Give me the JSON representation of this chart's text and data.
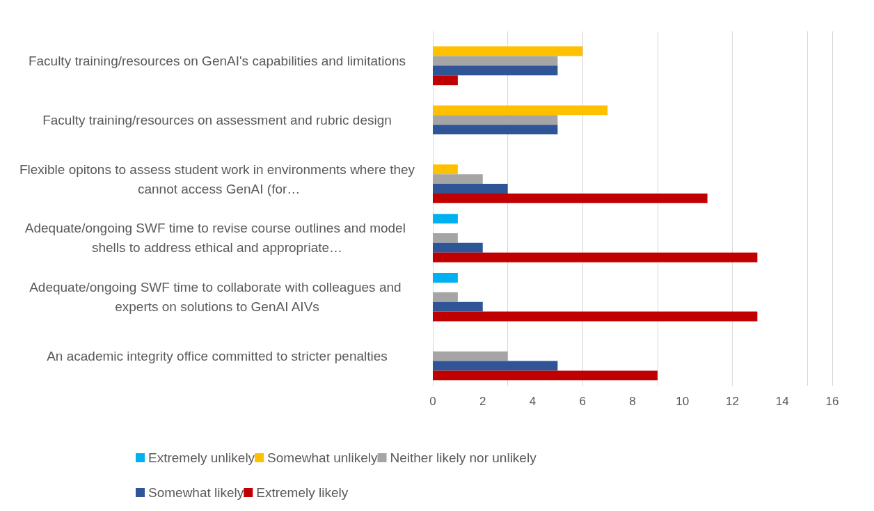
{
  "chart_data": {
    "type": "bar",
    "orientation": "horizontal",
    "categories": [
      "Faculty training/resources on GenAI's capabilities and limitations",
      "Faculty training/resources on assessment and rubric design",
      "Flexible opitons to assess student work in environments where they cannot access GenAI (for…",
      "Adequate/ongoing SWF time to revise course outlines and model shells to address ethical and appropriate…",
      "Adequate/ongoing SWF time to collaborate with colleagues and experts on solutions to GenAI AIVs",
      "An academic integrity office committed to stricter penalties"
    ],
    "series": [
      {
        "name": "Extremely unlikely",
        "color": "#00b0f0",
        "values": [
          0,
          0,
          0,
          1,
          1,
          0
        ]
      },
      {
        "name": "Somewhat unlikely",
        "color": "#ffc000",
        "values": [
          6,
          7,
          1,
          0,
          0,
          0
        ]
      },
      {
        "name": "Neither likely nor unlikely",
        "color": "#a5a5a5",
        "values": [
          5,
          5,
          2,
          1,
          1,
          3
        ]
      },
      {
        "name": "Somewhat likely",
        "color": "#2f5597",
        "values": [
          5,
          5,
          3,
          2,
          2,
          5
        ]
      },
      {
        "name": "Extremely likely",
        "color": "#c00000",
        "values": [
          1,
          0,
          11,
          13,
          13,
          9
        ]
      }
    ],
    "xlim": [
      0,
      16
    ],
    "xticks": [
      0,
      2,
      4,
      6,
      8,
      10,
      12,
      14,
      16
    ],
    "grid": "x",
    "legend": "bottom"
  }
}
